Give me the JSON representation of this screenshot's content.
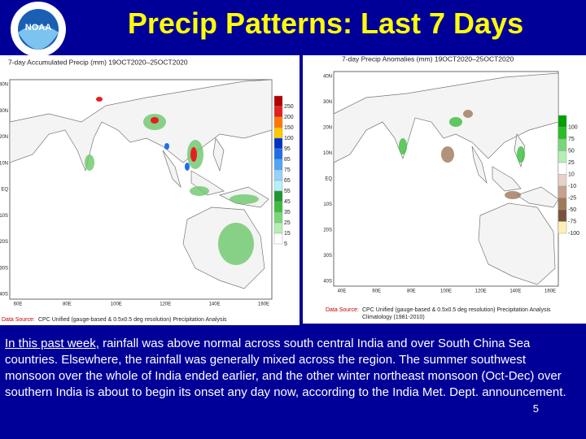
{
  "header": {
    "logo": "NOAA",
    "title": "Precip Patterns: Last 7 Days"
  },
  "maps": [
    {
      "title": "7-day Accumulated Precip (mm) 19OCT2020–25OCT2020",
      "lat_labels": [
        "40N",
        "30N",
        "20N",
        "10N",
        "EQ",
        "10S",
        "20S",
        "30S",
        "40S"
      ],
      "lon_labels": [
        "60E",
        "80E",
        "100E",
        "120E",
        "140E",
        "160E"
      ],
      "legend": [
        {
          "value": 250,
          "color": "#b40000"
        },
        {
          "value": 200,
          "color": "#e61e1e"
        },
        {
          "value": 150,
          "color": "#ff7800"
        },
        {
          "value": 100,
          "color": "#ffc800"
        },
        {
          "value": 95,
          "color": "#0032c8"
        },
        {
          "value": 85,
          "color": "#1e6eeb"
        },
        {
          "value": 75,
          "color": "#50a5f5"
        },
        {
          "value": 65,
          "color": "#96d2fa"
        },
        {
          "value": 55,
          "color": "#b4f0fa"
        },
        {
          "value": 45,
          "color": "#1e9632"
        },
        {
          "value": 35,
          "color": "#3cbe3c"
        },
        {
          "value": 25,
          "color": "#78d778"
        },
        {
          "value": 15,
          "color": "#b4f0b4"
        },
        {
          "value": 5,
          "color": "#ffffff"
        }
      ],
      "source_label": "Data Source:",
      "source": "CPC Unified (gauge-based & 0.5x0.5 deg resolution) Precipitation Analysis"
    },
    {
      "title": "7-day Precip Anomalies (mm) 19OCT2020–25OCT2020",
      "lat_labels": [
        "40N",
        "30N",
        "20N",
        "10N",
        "EQ",
        "10S",
        "20S",
        "30S",
        "40S"
      ],
      "lon_labels": [
        "40E",
        "60E",
        "80E",
        "100E",
        "120E",
        "140E",
        "160E"
      ],
      "legend": [
        {
          "value": 100,
          "color": "#00a000"
        },
        {
          "value": 75,
          "color": "#28be28"
        },
        {
          "value": 50,
          "color": "#78d778"
        },
        {
          "value": 25,
          "color": "#b4f0b4"
        },
        {
          "value": 10,
          "color": "#ffffff"
        },
        {
          "value": -10,
          "color": "#e6d2c8"
        },
        {
          "value": -25,
          "color": "#c8a08c"
        },
        {
          "value": -50,
          "color": "#a0785a"
        },
        {
          "value": -75,
          "color": "#78503c"
        },
        {
          "value": -100,
          "color": "#fff0b4"
        }
      ],
      "source_label": "Data Source:",
      "source": "CPC Unified (gauge-based & 0.5x0.5 deg resolution) Precipitation Analysis",
      "note": "Climatology (1981-2010)"
    }
  ],
  "body": {
    "lead": "In this past week,",
    "text": " rainfall was above normal across south central India and over South China Sea countries. Elsewhere, the rainfall was generally mixed across the region. The summer southwest monsoon over the whole of India ended earlier, and the other winter northeast monsoon (Oct-Dec) over southern India is about to begin its onset any day now, according  to the India Met. Dept. announcement.",
    "page": "5"
  }
}
